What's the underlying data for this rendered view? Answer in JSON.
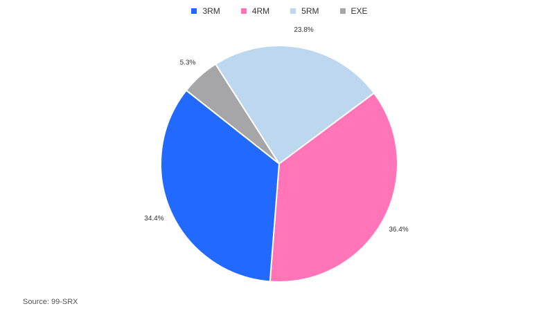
{
  "chart_data": {
    "type": "pie",
    "title": "",
    "legend_position": "top",
    "categories": [
      "3RM",
      "4RM",
      "5RM",
      "EXE"
    ],
    "values": [
      34.4,
      36.4,
      23.8,
      5.3
    ],
    "labels": [
      "34.4%",
      "36.4%",
      "23.8%",
      "5.3%"
    ],
    "colors": [
      "#2269ff",
      "#ff75b8",
      "#bdd7ee",
      "#a6a6a8"
    ],
    "slice_order": [
      "5RM",
      "4RM",
      "3RM",
      "EXE"
    ]
  },
  "source": "Source: 99-SRX"
}
